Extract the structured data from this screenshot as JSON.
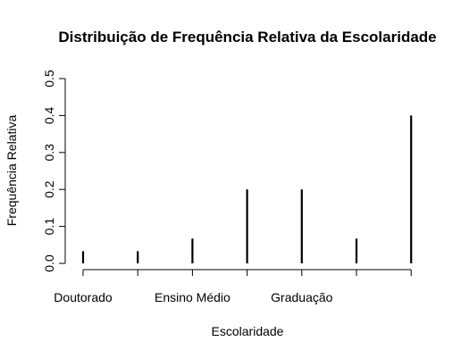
{
  "chart_data": {
    "type": "bar",
    "title": "Distribuição de Frequência Relativa da Escolaridade",
    "xlabel": "Escolaridade",
    "ylabel": "Frequência Relativa",
    "x_tick_labels": [
      "Doutorado",
      "",
      "Ensino Médio",
      "",
      "Graduação",
      "",
      ""
    ],
    "values": [
      0.033,
      0.033,
      0.067,
      0.2,
      0.2,
      0.067,
      0.4
    ],
    "ylim": [
      0,
      0.5
    ],
    "yticks": [
      0.0,
      0.1,
      0.2,
      0.3,
      0.4,
      0.5
    ],
    "ytick_labels": [
      "0.0",
      "0.1",
      "0.2",
      "0.3",
      "0.4",
      "0.5"
    ],
    "grid": false,
    "legend": "none",
    "bar_color": "#000000"
  }
}
